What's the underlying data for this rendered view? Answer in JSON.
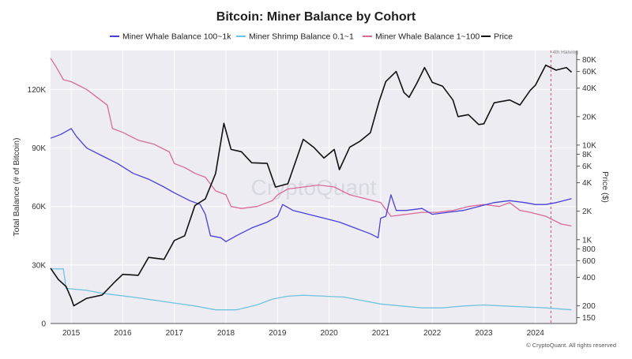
{
  "chart_data": {
    "type": "line",
    "title": "Bitcoin: Miner Balance by Cohort",
    "ylabel_left": "Total Balance (# of Bitcoin)",
    "ylabel_right": "Price ($)",
    "x_range": [
      2014.6,
      2024.8
    ],
    "ylim_left": [
      0,
      140000
    ],
    "ylim_right": [
      130,
      100000
    ],
    "y_right_scale": "log",
    "grid": true,
    "legend_position": "top",
    "x_ticks": [
      {
        "v": 2015,
        "label": "2015"
      },
      {
        "v": 2016,
        "label": "2016"
      },
      {
        "v": 2017,
        "label": "2017"
      },
      {
        "v": 2018,
        "label": "2018"
      },
      {
        "v": 2019,
        "label": "2019"
      },
      {
        "v": 2020,
        "label": "2020"
      },
      {
        "v": 2021,
        "label": "2021"
      },
      {
        "v": 2022,
        "label": "2022"
      },
      {
        "v": 2023,
        "label": "2023"
      },
      {
        "v": 2024,
        "label": "2024"
      }
    ],
    "y_left_ticks": [
      {
        "v": 0,
        "label": "0"
      },
      {
        "v": 30000,
        "label": "30K"
      },
      {
        "v": 60000,
        "label": "60K"
      },
      {
        "v": 90000,
        "label": "90K"
      },
      {
        "v": 120000,
        "label": "120K"
      }
    ],
    "y_right_ticks": [
      {
        "v": 150,
        "label": "150"
      },
      {
        "v": 200,
        "label": "200"
      },
      {
        "v": 400,
        "label": "400"
      },
      {
        "v": 600,
        "label": "600"
      },
      {
        "v": 800,
        "label": "800"
      },
      {
        "v": 1000,
        "label": "1K"
      },
      {
        "v": 2000,
        "label": "2K"
      },
      {
        "v": 4000,
        "label": "4K"
      },
      {
        "v": 6000,
        "label": "6K"
      },
      {
        "v": 8000,
        "label": "8K"
      },
      {
        "v": 10000,
        "label": "10K"
      },
      {
        "v": 20000,
        "label": "20K"
      },
      {
        "v": 40000,
        "label": "40K"
      },
      {
        "v": 60000,
        "label": "60K"
      },
      {
        "v": 80000,
        "label": "80K"
      }
    ],
    "annotation": {
      "label": "4th Halving",
      "x": 2024.3
    },
    "series": [
      {
        "name": "Miner Whale Balance 100~1k",
        "axis": "left",
        "color": "#4b3fd9",
        "points": [
          [
            2014.6,
            95000
          ],
          [
            2014.8,
            97000
          ],
          [
            2015.0,
            100000
          ],
          [
            2015.1,
            96000
          ],
          [
            2015.3,
            90000
          ],
          [
            2015.6,
            86000
          ],
          [
            2015.9,
            82000
          ],
          [
            2016.2,
            77000
          ],
          [
            2016.5,
            74000
          ],
          [
            2016.8,
            70000
          ],
          [
            2017.0,
            67000
          ],
          [
            2017.3,
            63000
          ],
          [
            2017.5,
            61000
          ],
          [
            2017.6,
            56000
          ],
          [
            2017.7,
            45000
          ],
          [
            2017.9,
            44000
          ],
          [
            2018.0,
            42000
          ],
          [
            2018.2,
            45000
          ],
          [
            2018.5,
            49000
          ],
          [
            2018.8,
            52000
          ],
          [
            2019.0,
            55000
          ],
          [
            2019.1,
            61000
          ],
          [
            2019.3,
            58000
          ],
          [
            2019.6,
            56000
          ],
          [
            2019.9,
            54000
          ],
          [
            2020.2,
            52000
          ],
          [
            2020.5,
            49000
          ],
          [
            2020.8,
            46000
          ],
          [
            2020.95,
            44000
          ],
          [
            2021.0,
            54000
          ],
          [
            2021.1,
            55000
          ],
          [
            2021.2,
            66000
          ],
          [
            2021.3,
            58000
          ],
          [
            2021.5,
            58000
          ],
          [
            2021.8,
            59000
          ],
          [
            2022.0,
            56000
          ],
          [
            2022.3,
            57000
          ],
          [
            2022.6,
            58000
          ],
          [
            2022.9,
            60000
          ],
          [
            2023.2,
            62000
          ],
          [
            2023.5,
            63000
          ],
          [
            2023.8,
            62000
          ],
          [
            2024.0,
            61000
          ],
          [
            2024.2,
            61000
          ],
          [
            2024.4,
            62000
          ],
          [
            2024.7,
            64000
          ]
        ]
      },
      {
        "name": "Miner Shrimp Balance 0.1~1",
        "axis": "left",
        "color": "#6fc3e0",
        "points": [
          [
            2014.6,
            28000
          ],
          [
            2014.85,
            28000
          ],
          [
            2014.9,
            18000
          ],
          [
            2015.3,
            17000
          ],
          [
            2015.6,
            15500
          ],
          [
            2015.9,
            14500
          ],
          [
            2016.2,
            13500
          ],
          [
            2016.6,
            12000
          ],
          [
            2017.0,
            10500
          ],
          [
            2017.4,
            9000
          ],
          [
            2017.8,
            7000
          ],
          [
            2018.2,
            7000
          ],
          [
            2018.6,
            9500
          ],
          [
            2018.9,
            12500
          ],
          [
            2019.2,
            14000
          ],
          [
            2019.5,
            14500
          ],
          [
            2019.9,
            14000
          ],
          [
            2020.3,
            13500
          ],
          [
            2020.7,
            11500
          ],
          [
            2021.0,
            10000
          ],
          [
            2021.4,
            9000
          ],
          [
            2021.8,
            8000
          ],
          [
            2022.2,
            8000
          ],
          [
            2022.6,
            9000
          ],
          [
            2023.0,
            9500
          ],
          [
            2023.4,
            9000
          ],
          [
            2023.8,
            8500
          ],
          [
            2024.2,
            8000
          ],
          [
            2024.7,
            7000
          ]
        ]
      },
      {
        "name": "Miner Whale Balance 1~100",
        "axis": "left",
        "color": "#d86a9a",
        "points": [
          [
            2014.6,
            136000
          ],
          [
            2014.7,
            132000
          ],
          [
            2014.85,
            125000
          ],
          [
            2015.0,
            124000
          ],
          [
            2015.3,
            120000
          ],
          [
            2015.5,
            116000
          ],
          [
            2015.7,
            112000
          ],
          [
            2015.8,
            100000
          ],
          [
            2016.0,
            98000
          ],
          [
            2016.3,
            94000
          ],
          [
            2016.6,
            92000
          ],
          [
            2016.9,
            88000
          ],
          [
            2017.0,
            82000
          ],
          [
            2017.2,
            80000
          ],
          [
            2017.4,
            77000
          ],
          [
            2017.6,
            75000
          ],
          [
            2017.8,
            68000
          ],
          [
            2018.0,
            66000
          ],
          [
            2018.1,
            60000
          ],
          [
            2018.3,
            59000
          ],
          [
            2018.6,
            60000
          ],
          [
            2018.9,
            63000
          ],
          [
            2019.0,
            66000
          ],
          [
            2019.2,
            69000
          ],
          [
            2019.5,
            70000
          ],
          [
            2019.8,
            71000
          ],
          [
            2020.1,
            70000
          ],
          [
            2020.4,
            66000
          ],
          [
            2020.7,
            64000
          ],
          [
            2021.0,
            62000
          ],
          [
            2021.2,
            55000
          ],
          [
            2021.5,
            56000
          ],
          [
            2021.8,
            57000
          ],
          [
            2022.1,
            57000
          ],
          [
            2022.4,
            58000
          ],
          [
            2022.7,
            60000
          ],
          [
            2023.0,
            61000
          ],
          [
            2023.3,
            60000
          ],
          [
            2023.5,
            62000
          ],
          [
            2023.7,
            58000
          ],
          [
            2023.9,
            57000
          ],
          [
            2024.2,
            55000
          ],
          [
            2024.5,
            51000
          ],
          [
            2024.7,
            50000
          ]
        ]
      },
      {
        "name": "Price",
        "axis": "right",
        "color": "#111111",
        "points": [
          [
            2014.6,
            500
          ],
          [
            2014.75,
            380
          ],
          [
            2014.9,
            320
          ],
          [
            2015.0,
            240
          ],
          [
            2015.05,
            200
          ],
          [
            2015.3,
            240
          ],
          [
            2015.6,
            260
          ],
          [
            2015.85,
            360
          ],
          [
            2016.0,
            430
          ],
          [
            2016.3,
            420
          ],
          [
            2016.5,
            650
          ],
          [
            2016.8,
            620
          ],
          [
            2017.0,
            980
          ],
          [
            2017.2,
            1100
          ],
          [
            2017.4,
            2300
          ],
          [
            2017.6,
            2700
          ],
          [
            2017.8,
            5000
          ],
          [
            2017.96,
            17000
          ],
          [
            2018.1,
            9000
          ],
          [
            2018.3,
            8500
          ],
          [
            2018.5,
            6500
          ],
          [
            2018.8,
            6400
          ],
          [
            2018.96,
            3600
          ],
          [
            2019.2,
            3900
          ],
          [
            2019.4,
            8000
          ],
          [
            2019.5,
            11500
          ],
          [
            2019.7,
            9500
          ],
          [
            2019.9,
            7300
          ],
          [
            2020.1,
            9000
          ],
          [
            2020.2,
            5500
          ],
          [
            2020.4,
            9500
          ],
          [
            2020.6,
            11000
          ],
          [
            2020.8,
            13500
          ],
          [
            2020.97,
            29000
          ],
          [
            2021.1,
            47000
          ],
          [
            2021.3,
            60000
          ],
          [
            2021.45,
            36000
          ],
          [
            2021.55,
            32000
          ],
          [
            2021.7,
            45000
          ],
          [
            2021.85,
            66000
          ],
          [
            2022.0,
            46000
          ],
          [
            2022.2,
            42000
          ],
          [
            2022.4,
            30000
          ],
          [
            2022.5,
            20000
          ],
          [
            2022.7,
            21000
          ],
          [
            2022.9,
            16500
          ],
          [
            2023.0,
            16800
          ],
          [
            2023.2,
            28000
          ],
          [
            2023.5,
            30000
          ],
          [
            2023.7,
            26500
          ],
          [
            2023.9,
            38000
          ],
          [
            2024.0,
            43000
          ],
          [
            2024.2,
            70000
          ],
          [
            2024.4,
            62000
          ],
          [
            2024.6,
            66000
          ],
          [
            2024.7,
            59000
          ]
        ]
      }
    ]
  },
  "footer": {
    "watermark": "CryptoQuant",
    "copyright": "© CryptoQuant. All rights reserved"
  }
}
